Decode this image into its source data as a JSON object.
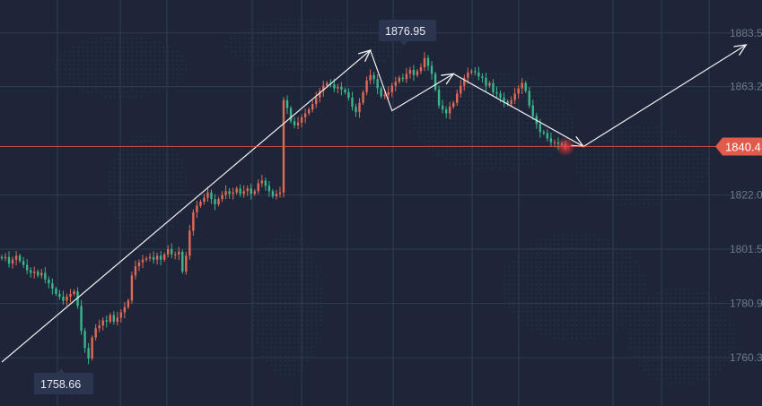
{
  "chart_data": {
    "type": "candlestick",
    "title": "",
    "xlabel": "",
    "ylabel": "",
    "y_ticks": [
      {
        "value": 1883.5,
        "label": "1883.5"
      },
      {
        "value": 1863.2,
        "label": "1863.2"
      },
      {
        "value": 1822.0,
        "label": "1822.0"
      },
      {
        "value": 1801.5,
        "label": "1801.5"
      },
      {
        "value": 1780.9,
        "label": "1780.9"
      },
      {
        "value": 1760.3,
        "label": "1760.3"
      }
    ],
    "ylim": [
      1742,
      1896
    ],
    "current_price": {
      "value": 1840.4,
      "label": "1840.4"
    },
    "annotations": [
      {
        "kind": "high",
        "value": 1876.95,
        "label": "1876.95"
      },
      {
        "kind": "low",
        "value": 1758.66,
        "label": "1758.66"
      }
    ],
    "candles_close_path": [
      1798.0,
      1798.5,
      1796.0,
      1797.5,
      1799.0,
      1797.0,
      1795.5,
      1793.5,
      1792.5,
      1793.0,
      1791.5,
      1792.5,
      1790.0,
      1788.5,
      1786.5,
      1784.5,
      1783.5,
      1782.0,
      1783.5,
      1784.5,
      1785.5,
      1780.0,
      1770.5,
      1764.0,
      1760.0,
      1768.0,
      1771.5,
      1772.5,
      1774.5,
      1774.0,
      1776.5,
      1774.0,
      1775.5,
      1777.5,
      1779.5,
      1782.0,
      1791.5,
      1795.0,
      1796.5,
      1797.5,
      1798.0,
      1798.5,
      1797.5,
      1799.0,
      1797.5,
      1799.5,
      1801.5,
      1799.5,
      1799.5,
      1800.5,
      1793.0,
      1799.0,
      1808.5,
      1815.5,
      1818.0,
      1819.5,
      1821.0,
      1823.0,
      1820.5,
      1818.5,
      1820.5,
      1822.0,
      1823.5,
      1822.5,
      1823.0,
      1824.5,
      1822.5,
      1823.5,
      1824.5,
      1822.5,
      1823.5,
      1826.5,
      1827.5,
      1825.5,
      1823.5,
      1821.5,
      1822.5,
      1823.0,
      1858.0,
      1855.0,
      1850.0,
      1848.5,
      1849.5,
      1851.5,
      1853.0,
      1854.5,
      1856.5,
      1859.0,
      1861.5,
      1863.5,
      1864.5,
      1864.0,
      1862.5,
      1863.0,
      1862.0,
      1861.0,
      1859.0,
      1855.5,
      1853.5,
      1857.0,
      1861.0,
      1865.5,
      1867.5,
      1866.0,
      1862.5,
      1859.5,
      1860.0,
      1861.0,
      1863.5,
      1865.0,
      1866.5,
      1866.0,
      1868.0,
      1869.5,
      1867.5,
      1869.0,
      1870.5,
      1874.0,
      1871.0,
      1868.0,
      1862.0,
      1856.0,
      1854.5,
      1853.0,
      1855.5,
      1857.0,
      1860.5,
      1863.5,
      1866.5,
      1868.5,
      1869.0,
      1868.5,
      1867.0,
      1866.5,
      1863.5,
      1864.5,
      1861.0,
      1860.5,
      1859.0,
      1857.5,
      1856.5,
      1858.0,
      1860.5,
      1862.5,
      1864.5,
      1861.5,
      1856.0,
      1852.0,
      1849.0,
      1846.0,
      1845.5,
      1843.5,
      1842.0,
      1842.0,
      1841.5,
      1841.0,
      1840.4
    ],
    "drawn_lines": [
      {
        "name": "uptrend-line",
        "points": [
          [
            0,
            1758.66
          ],
          [
            102,
            1876.95
          ]
        ],
        "arrow_end": true
      },
      {
        "name": "zigzag-1",
        "points": [
          [
            102,
            1876.95
          ],
          [
            108,
            1854.0
          ],
          [
            125,
            1868.0
          ]
        ],
        "arrow_end": true
      },
      {
        "name": "zigzag-2",
        "points": [
          [
            125,
            1868.0
          ],
          [
            161,
            1840.4
          ]
        ],
        "arrow_end": true
      },
      {
        "name": "projection",
        "points": [
          [
            161,
            1840.4
          ],
          [
            206,
            1879.0
          ]
        ],
        "arrow_end": true
      }
    ],
    "colors": {
      "background": "#1e2538",
      "grid": "#323a52",
      "up": "#e06a57",
      "down": "#3ab58c",
      "current_price_line": "#e0564a",
      "current_price_tag": "#e25a4c",
      "callout_bg": "#2c3550",
      "trend_lines": "#f2f2f2"
    },
    "grid": true
  }
}
